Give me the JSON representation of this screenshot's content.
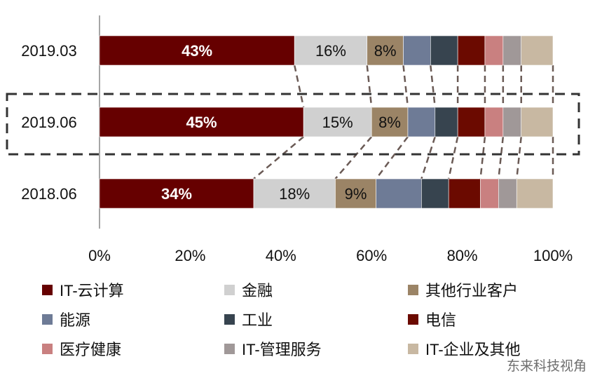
{
  "chart_data": {
    "type": "bar",
    "orientation": "horizontal",
    "stacked": true,
    "categories": [
      "2019.03",
      "2019.06",
      "2018.06"
    ],
    "highlighted_category": "2019.06",
    "xlim": [
      0,
      100
    ],
    "xticks": [
      "0%",
      "20%",
      "40%",
      "60%",
      "80%",
      "100%"
    ],
    "series": [
      {
        "name": "IT-云计算",
        "color": "#660000",
        "values": [
          43,
          45,
          34
        ],
        "labels": [
          "43%",
          "45%",
          "34%"
        ],
        "label_color": "#ffffff"
      },
      {
        "name": "金融",
        "color": "#d0d0d0",
        "values": [
          16,
          15,
          18
        ],
        "labels": [
          "16%",
          "15%",
          "18%"
        ],
        "label_color": "#111111"
      },
      {
        "name": "其他行业客户",
        "color": "#9b8466",
        "values": [
          8,
          8,
          9
        ],
        "labels": [
          "8%",
          "8%",
          "9%"
        ],
        "label_color": "#111111"
      },
      {
        "name": "能源",
        "color": "#6e7b96",
        "values": [
          6,
          6,
          10
        ]
      },
      {
        "name": "工业",
        "color": "#37444f",
        "values": [
          6,
          5,
          6
        ]
      },
      {
        "name": "电信",
        "color": "#6b0a00",
        "values": [
          6,
          6,
          7
        ]
      },
      {
        "name": "医疗健康",
        "color": "#c98080",
        "values": [
          4,
          4,
          4
        ]
      },
      {
        "name": "IT-管理服务",
        "color": "#a09898",
        "values": [
          4,
          4,
          4
        ]
      },
      {
        "name": "IT-企业及其他",
        "color": "#c8b8a2",
        "values": [
          7,
          7,
          8
        ]
      }
    ],
    "legend_position": "bottom"
  },
  "watermark": "东来科技视角"
}
